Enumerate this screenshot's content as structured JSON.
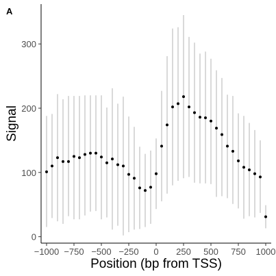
{
  "panel_label": "A",
  "chart_data": {
    "type": "scatter",
    "title": "",
    "xlabel": "Position (bp from TSS)",
    "ylabel": "Signal",
    "xlim": [
      -1050,
      1050
    ],
    "ylim": [
      -10,
      362
    ],
    "xticks": [
      -1000,
      -750,
      -500,
      -250,
      0,
      250,
      500,
      750,
      1000
    ],
    "xtick_labels": [
      "−1000",
      "−750",
      "−500",
      "−250",
      "0",
      "250",
      "500",
      "750",
      "1000"
    ],
    "yticks": [
      0,
      100,
      200,
      300
    ],
    "ytick_labels": [
      "0",
      "100",
      "200",
      "300"
    ],
    "grid": false,
    "point_color": "#000000",
    "errorbar_color": "#b3b3b3",
    "points": [
      {
        "x": -1000,
        "y": 101,
        "lo": 15,
        "hi": 188
      },
      {
        "x": -950,
        "y": 110,
        "lo": 29,
        "hi": 191
      },
      {
        "x": -900,
        "y": 123,
        "lo": 24,
        "hi": 222
      },
      {
        "x": -850,
        "y": 117,
        "lo": 20,
        "hi": 214
      },
      {
        "x": -800,
        "y": 117,
        "lo": 32,
        "hi": 219
      },
      {
        "x": -750,
        "y": 125,
        "lo": 27,
        "hi": 219
      },
      {
        "x": -700,
        "y": 123,
        "lo": 27,
        "hi": 219
      },
      {
        "x": -650,
        "y": 128,
        "lo": 33,
        "hi": 220
      },
      {
        "x": -600,
        "y": 130,
        "lo": 39,
        "hi": 220
      },
      {
        "x": -550,
        "y": 130,
        "lo": 40,
        "hi": 220
      },
      {
        "x": -500,
        "y": 124,
        "lo": 27,
        "hi": 220
      },
      {
        "x": -450,
        "y": 115,
        "lo": 30,
        "hi": 201
      },
      {
        "x": -400,
        "y": 121,
        "lo": 11,
        "hi": 231
      },
      {
        "x": -350,
        "y": 112,
        "lo": 17,
        "hi": 207
      },
      {
        "x": -300,
        "y": 110,
        "lo": 2,
        "hi": 218
      },
      {
        "x": -250,
        "y": 97,
        "lo": 7,
        "hi": 187
      },
      {
        "x": -200,
        "y": 91,
        "lo": 11,
        "hi": 171
      },
      {
        "x": -150,
        "y": 76,
        "lo": 12,
        "hi": 140
      },
      {
        "x": -100,
        "y": 72,
        "lo": 15,
        "hi": 129
      },
      {
        "x": -50,
        "y": 77,
        "lo": 20,
        "hi": 134
      },
      {
        "x": 0,
        "y": 98,
        "lo": 43,
        "hi": 153
      },
      {
        "x": 50,
        "y": 141,
        "lo": 55,
        "hi": 227
      },
      {
        "x": 100,
        "y": 174,
        "lo": 67,
        "hi": 281
      },
      {
        "x": 150,
        "y": 202,
        "lo": 80,
        "hi": 324
      },
      {
        "x": 200,
        "y": 207,
        "lo": 87,
        "hi": 326
      },
      {
        "x": 250,
        "y": 218,
        "lo": 91,
        "hi": 345
      },
      {
        "x": 300,
        "y": 202,
        "lo": 93,
        "hi": 311
      },
      {
        "x": 350,
        "y": 193,
        "lo": 84,
        "hi": 302
      },
      {
        "x": 400,
        "y": 186,
        "lo": 83,
        "hi": 285
      },
      {
        "x": 450,
        "y": 185,
        "lo": 83,
        "hi": 288
      },
      {
        "x": 500,
        "y": 180,
        "lo": 82,
        "hi": 277
      },
      {
        "x": 550,
        "y": 169,
        "lo": 62,
        "hi": 259
      },
      {
        "x": 600,
        "y": 159,
        "lo": 63,
        "hi": 247
      },
      {
        "x": 650,
        "y": 141,
        "lo": 60,
        "hi": 221
      },
      {
        "x": 700,
        "y": 133,
        "lo": 51,
        "hi": 219
      },
      {
        "x": 750,
        "y": 118,
        "lo": 44,
        "hi": 192
      },
      {
        "x": 800,
        "y": 108,
        "lo": 28,
        "hi": 188
      },
      {
        "x": 850,
        "y": 104,
        "lo": 32,
        "hi": 177
      },
      {
        "x": 900,
        "y": 98,
        "lo": 30,
        "hi": 166
      },
      {
        "x": 950,
        "y": 93,
        "lo": 37,
        "hi": 150
      },
      {
        "x": 1000,
        "y": 31,
        "lo": 13,
        "hi": 49
      }
    ]
  }
}
